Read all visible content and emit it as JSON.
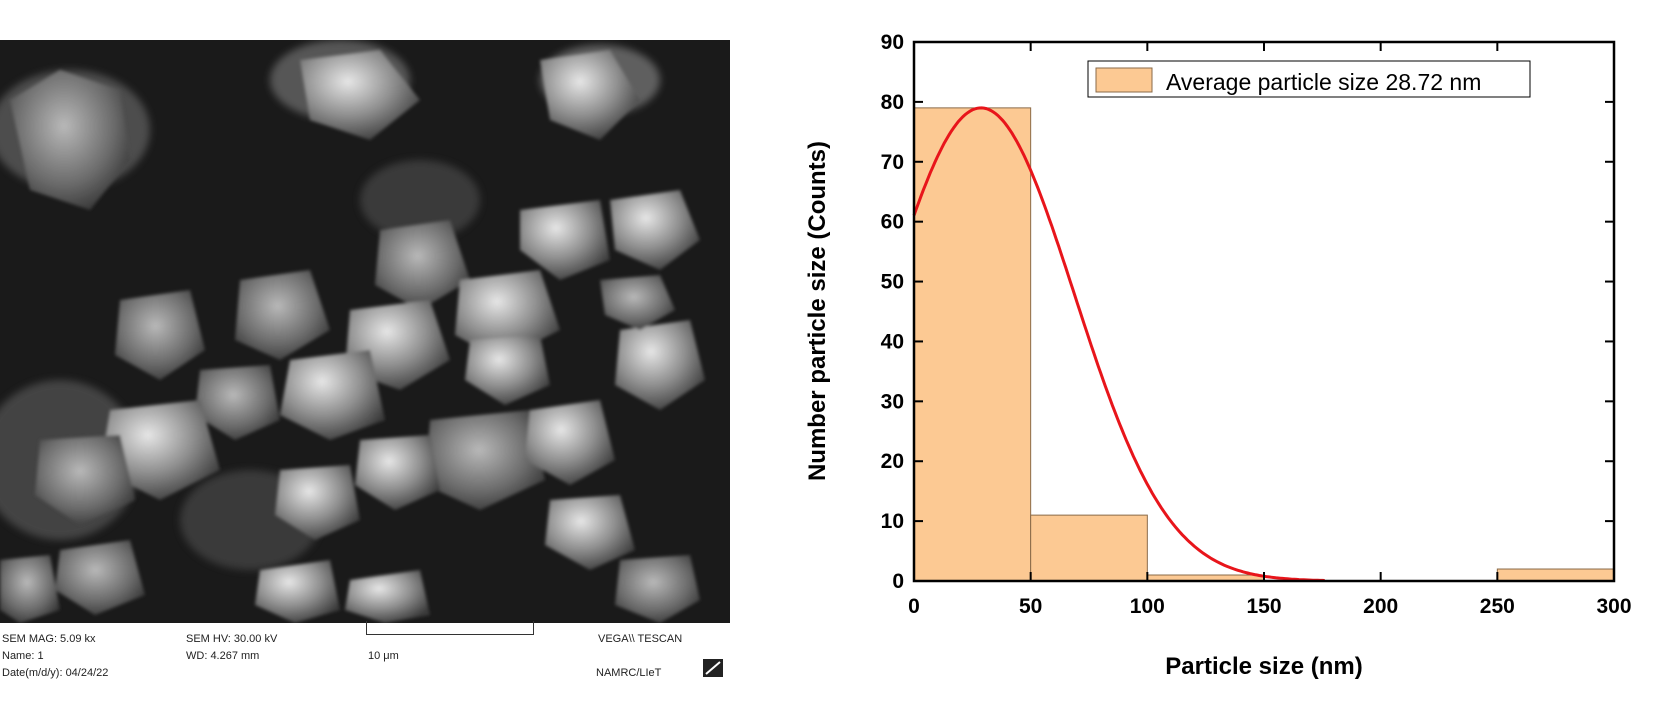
{
  "sem": {
    "mag": "SEM MAG: 5.09 kx",
    "hv": "SEM HV: 30.00 kV",
    "name": "Name: 1",
    "wd": "WD: 4.267 mm",
    "date": "Date(m/d/y): 04/24/22",
    "scalebar": "10 μm",
    "instrument": "VEGA\\\\ TESCAN",
    "lab": "NAMRC/LIeT"
  },
  "chart_data": {
    "type": "bar",
    "subtype": "histogram",
    "xlabel": "Particle size (nm)",
    "ylabel": "Number particle size (Counts)",
    "xlim": [
      0,
      300
    ],
    "ylim": [
      0,
      90
    ],
    "xticks": [
      0,
      50,
      100,
      150,
      200,
      250,
      300
    ],
    "yticks": [
      0,
      10,
      20,
      30,
      40,
      50,
      60,
      70,
      80,
      90
    ],
    "bins": [
      {
        "from": 0,
        "to": 50,
        "count": 79
      },
      {
        "from": 50,
        "to": 100,
        "count": 11
      },
      {
        "from": 100,
        "to": 150,
        "count": 1
      },
      {
        "from": 150,
        "to": 200,
        "count": 0
      },
      {
        "from": 200,
        "to": 250,
        "count": 0
      },
      {
        "from": 250,
        "to": 300,
        "count": 2
      }
    ],
    "fit_curve": {
      "type": "gaussian",
      "peak_x": 28.72,
      "peak_y": 79,
      "sigma": 40,
      "range": [
        0,
        176
      ]
    },
    "legend": "Average particle size 28.72 nm",
    "legend_position": "top-right",
    "colors": {
      "bar": "#fcc993",
      "bar_edge": "#8a6a48",
      "curve": "#e8151b"
    }
  }
}
